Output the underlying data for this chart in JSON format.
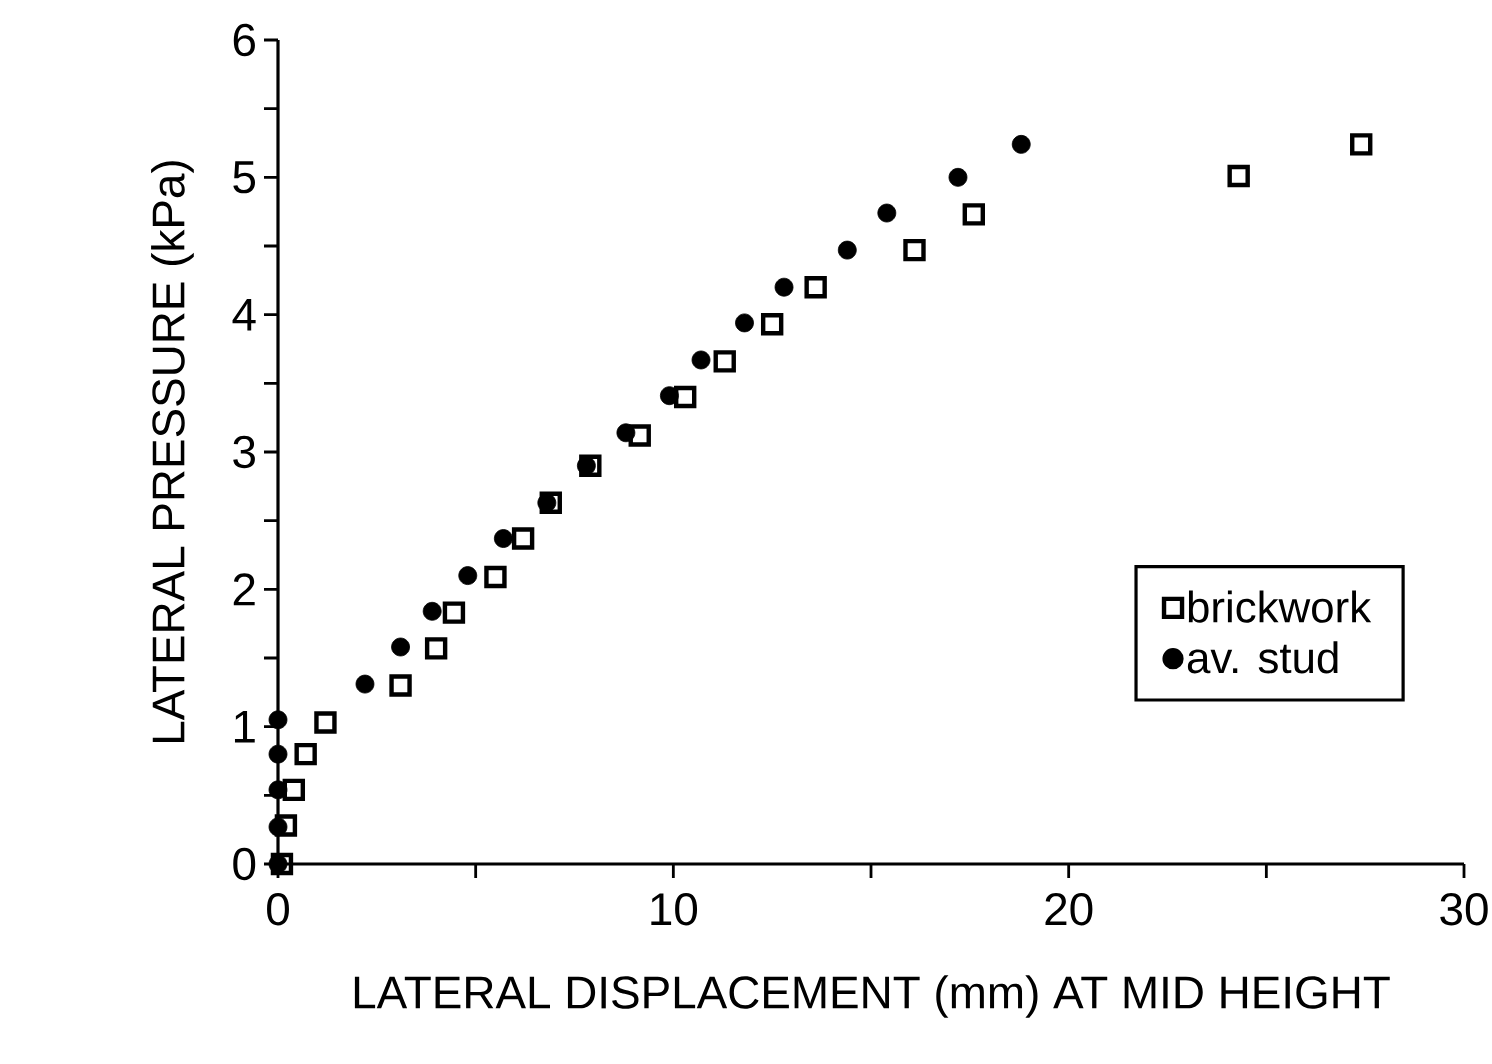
{
  "chart_data": {
    "type": "scatter",
    "xlabel": "LATERAL DISPLACEMENT (mm) AT MID HEIGHT",
    "ylabel": "LATERAL PRESSURE (kPa)",
    "xlim": [
      0,
      30
    ],
    "ylim": [
      0,
      6
    ],
    "xticks": [
      0,
      {
        "value": 5,
        "label": null
      },
      10,
      {
        "value": 15,
        "label": null
      },
      20,
      {
        "value": 25,
        "label": null
      },
      30
    ],
    "yticks": [
      0,
      {
        "value": 0.5,
        "label": null
      },
      1,
      {
        "value": 1.5,
        "label": null
      },
      2,
      {
        "value": 2.5,
        "label": null
      },
      3,
      {
        "value": 3.5,
        "label": null
      },
      4,
      {
        "value": 4.5,
        "label": null
      },
      5,
      {
        "value": 5.5,
        "label": null
      },
      6
    ],
    "grid": false,
    "legend": "right",
    "series": [
      {
        "name": "brickwork",
        "color": "#000000",
        "marker": "square",
        "x": [
          0.1,
          0.2,
          0.4,
          0.7,
          1.2,
          3.1,
          4.0,
          4.45,
          5.5,
          6.2,
          6.9,
          7.9,
          9.15,
          10.3,
          11.3,
          12.5,
          13.6,
          16.1,
          17.6,
          24.3,
          27.4
        ],
        "values": [
          0,
          0.28,
          0.54,
          0.8,
          1.03,
          1.3,
          1.57,
          1.83,
          2.09,
          2.37,
          2.63,
          2.9,
          3.12,
          3.4,
          3.66,
          3.93,
          4.2,
          4.47,
          4.73,
          5.01,
          5.24
        ]
      },
      {
        "name": "av. stud",
        "color": "#000000",
        "marker": "circle",
        "x": [
          0,
          0,
          0,
          0,
          0,
          2.2,
          3.1,
          3.9,
          4.8,
          5.7,
          6.8,
          7.8,
          8.8,
          9.9,
          10.7,
          11.8,
          12.8,
          14.4,
          15.4,
          17.2,
          18.8
        ],
        "values": [
          0,
          0.27,
          0.54,
          0.8,
          1.05,
          1.31,
          1.58,
          1.84,
          2.1,
          2.37,
          2.63,
          2.9,
          3.14,
          3.41,
          3.67,
          3.94,
          4.2,
          4.47,
          4.74,
          5.0,
          5.24
        ]
      }
    ]
  }
}
